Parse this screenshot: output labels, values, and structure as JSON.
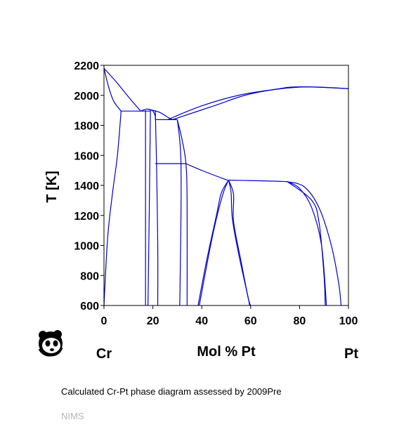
{
  "chart_data": {
    "type": "line",
    "title": "",
    "xlabel": "Mol % Pt",
    "ylabel": "T [K]",
    "xlim": [
      0,
      100
    ],
    "ylim": [
      600,
      2200
    ],
    "x_ticks": [
      0,
      20,
      40,
      60,
      80,
      100
    ],
    "y_ticks": [
      600,
      800,
      1000,
      1200,
      1400,
      1600,
      1800,
      2000,
      2200
    ],
    "left_element": "Cr",
    "right_element": "Pt",
    "line_color": "#0000cc",
    "grid": false,
    "legend": "none",
    "series": [
      {
        "points": [
          [
            0,
            2180
          ],
          [
            5,
            2090
          ],
          [
            10,
            1990
          ],
          [
            15,
            1895
          ]
        ]
      },
      {
        "points": [
          [
            0,
            2180
          ],
          [
            2,
            2050
          ],
          [
            4,
            1960
          ],
          [
            7,
            1895
          ]
        ]
      },
      {
        "points": [
          [
            7,
            1895
          ],
          [
            19,
            1895
          ]
        ]
      },
      {
        "points": [
          [
            7,
            1895
          ],
          [
            5.5,
            1600
          ],
          [
            3.5,
            1350
          ],
          [
            1.5,
            1050
          ],
          [
            0,
            600
          ]
        ]
      },
      {
        "points": [
          [
            15,
            1895
          ],
          [
            17.5,
            1908
          ],
          [
            20,
            1900
          ],
          [
            23,
            1885
          ],
          [
            26,
            1855
          ],
          [
            28,
            1838
          ]
        ]
      },
      {
        "points": [
          [
            18,
            1908
          ],
          [
            20,
            1895
          ],
          [
            21,
            1860
          ],
          [
            21,
            1838
          ]
        ]
      },
      {
        "points": [
          [
            21,
            1838
          ],
          [
            30,
            1838
          ]
        ]
      },
      {
        "points": [
          [
            28,
            1838
          ],
          [
            45,
            1930
          ],
          [
            60,
            2010
          ],
          [
            80,
            2055
          ],
          [
            100,
            2045
          ]
        ]
      },
      {
        "points": [
          [
            26,
            1838
          ],
          [
            40,
            1930
          ],
          [
            55,
            2000
          ],
          [
            70,
            2040
          ],
          [
            80,
            2057
          ],
          [
            100,
            2045
          ]
        ]
      },
      {
        "points": [
          [
            17,
            1900
          ],
          [
            17,
            1200
          ],
          [
            17,
            600
          ]
        ]
      },
      {
        "points": [
          [
            19,
            1900
          ],
          [
            18.5,
            1200
          ],
          [
            18,
            600
          ]
        ]
      },
      {
        "points": [
          [
            21,
            1900
          ],
          [
            21.5,
            1550
          ],
          [
            22,
            1000
          ],
          [
            22,
            600
          ]
        ]
      },
      {
        "points": [
          [
            30,
            1838
          ],
          [
            32,
            1700
          ],
          [
            33.5,
            1550
          ],
          [
            34,
            1300
          ],
          [
            34,
            600
          ]
        ]
      },
      {
        "points": [
          [
            21,
            1545
          ],
          [
            33.5,
            1545
          ]
        ]
      },
      {
        "points": [
          [
            30,
            1838
          ],
          [
            31,
            1700
          ],
          [
            31.5,
            1545
          ],
          [
            31.5,
            1200
          ],
          [
            31,
            600
          ]
        ]
      },
      {
        "points": [
          [
            33.5,
            1545
          ],
          [
            40,
            1500
          ],
          [
            46,
            1462
          ],
          [
            51,
            1432
          ]
        ]
      },
      {
        "points": [
          [
            51,
            1435
          ],
          [
            49,
            1360
          ],
          [
            46,
            1180
          ],
          [
            43,
            950
          ],
          [
            39,
            600
          ]
        ]
      },
      {
        "points": [
          [
            51,
            1435
          ],
          [
            48,
            1350
          ],
          [
            46,
            1200
          ],
          [
            42,
            900
          ],
          [
            38.5,
            600
          ]
        ]
      },
      {
        "points": [
          [
            51,
            1435
          ],
          [
            52,
            1350
          ],
          [
            52.5,
            1180
          ],
          [
            55,
            950
          ],
          [
            59,
            650
          ],
          [
            59.5,
            600
          ]
        ]
      },
      {
        "points": [
          [
            51,
            1435
          ],
          [
            53,
            1340
          ],
          [
            53,
            1160
          ],
          [
            56,
            900
          ],
          [
            59,
            650
          ],
          [
            60,
            600
          ]
        ]
      },
      {
        "points": [
          [
            51,
            1435
          ],
          [
            60,
            1432
          ],
          [
            70,
            1428
          ],
          [
            75,
            1425
          ]
        ]
      },
      {
        "points": [
          [
            75,
            1425
          ],
          [
            80,
            1380
          ],
          [
            85,
            1250
          ],
          [
            89,
            1000
          ],
          [
            91,
            600
          ]
        ]
      },
      {
        "points": [
          [
            75,
            1425
          ],
          [
            82,
            1390
          ],
          [
            88,
            1250
          ],
          [
            93,
            1000
          ],
          [
            96,
            750
          ],
          [
            97,
            600
          ]
        ]
      },
      {
        "points": [
          [
            75,
            1425
          ],
          [
            85,
            1300
          ],
          [
            88,
            1150
          ],
          [
            90,
            800
          ],
          [
            90.5,
            600
          ]
        ]
      }
    ]
  },
  "caption": "Calculated Cr-Pt phase diagram assessed by 2009Pre",
  "source": "NIMS",
  "logo_icon": "panda-logo-icon"
}
